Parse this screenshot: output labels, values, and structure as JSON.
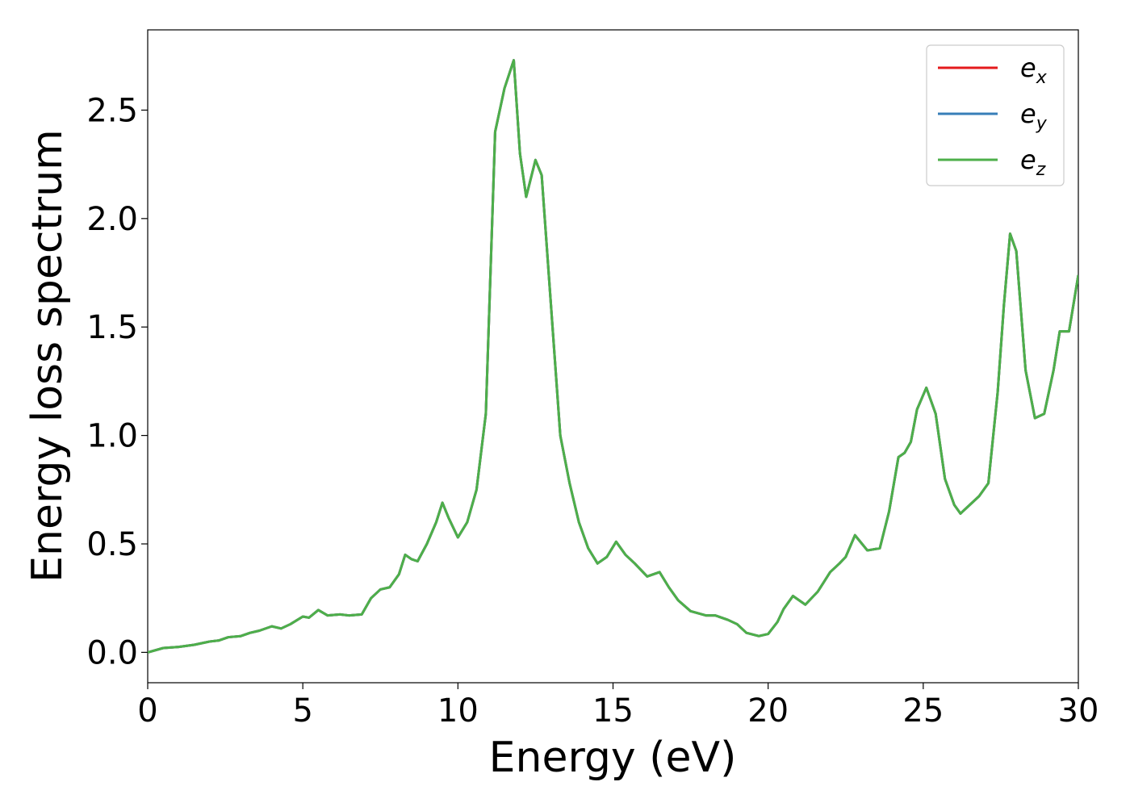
{
  "chart_data": {
    "type": "line",
    "xlabel": "Energy (eV)",
    "ylabel": "Energy loss spectrum",
    "xlim": [
      0,
      30
    ],
    "ylim": [
      -0.14,
      2.87
    ],
    "xticks": [
      0,
      5,
      10,
      15,
      20,
      25,
      30
    ],
    "xtick_labels": [
      "0",
      "5",
      "10",
      "15",
      "20",
      "25",
      "30"
    ],
    "yticks": [
      0.0,
      0.5,
      1.0,
      1.5,
      2.0,
      2.5
    ],
    "ytick_labels": [
      "0.0",
      "0.5",
      "1.0",
      "1.5",
      "2.0",
      "2.5"
    ],
    "grid": false,
    "legend_position": "top-right",
    "x": [
      0,
      0.5,
      1,
      1.5,
      2,
      2.3,
      2.6,
      3,
      3.3,
      3.6,
      4,
      4.3,
      4.6,
      5,
      5.2,
      5.5,
      5.8,
      6.2,
      6.5,
      6.9,
      7.2,
      7.5,
      7.8,
      8.1,
      8.3,
      8.5,
      8.7,
      9,
      9.3,
      9.5,
      9.7,
      10,
      10.3,
      10.6,
      10.9,
      11.2,
      11.5,
      11.8,
      12,
      12.2,
      12.5,
      12.7,
      13,
      13.3,
      13.6,
      13.9,
      14.2,
      14.5,
      14.8,
      15.1,
      15.4,
      15.7,
      16.1,
      16.5,
      16.8,
      17.1,
      17.5,
      18,
      18.3,
      18.7,
      19,
      19.3,
      19.7,
      20,
      20.3,
      20.5,
      20.8,
      21.2,
      21.6,
      22,
      22.3,
      22.5,
      22.8,
      23.2,
      23.6,
      23.9,
      24.2,
      24.4,
      24.6,
      24.8,
      25.1,
      25.4,
      25.7,
      26,
      26.2,
      26.5,
      26.8,
      27.1,
      27.4,
      27.6,
      27.8,
      28,
      28.3,
      28.6,
      28.9,
      29.2,
      29.4,
      29.7,
      30
    ],
    "series": [
      {
        "name": "e_x",
        "color": "#e41a1c",
        "values": [
          0,
          0.02,
          0.025,
          0.035,
          0.05,
          0.055,
          0.07,
          0.075,
          0.09,
          0.1,
          0.12,
          0.11,
          0.13,
          0.165,
          0.16,
          0.195,
          0.17,
          0.175,
          0.17,
          0.175,
          0.25,
          0.29,
          0.3,
          0.36,
          0.45,
          0.43,
          0.42,
          0.5,
          0.6,
          0.69,
          0.62,
          0.53,
          0.6,
          0.75,
          1.1,
          2.4,
          2.6,
          2.73,
          2.3,
          2.1,
          2.27,
          2.2,
          1.6,
          1.0,
          0.78,
          0.6,
          0.48,
          0.41,
          0.44,
          0.51,
          0.45,
          0.41,
          0.35,
          0.37,
          0.3,
          0.24,
          0.19,
          0.17,
          0.17,
          0.15,
          0.13,
          0.09,
          0.075,
          0.085,
          0.14,
          0.2,
          0.26,
          0.22,
          0.28,
          0.37,
          0.41,
          0.44,
          0.54,
          0.47,
          0.48,
          0.65,
          0.9,
          0.92,
          0.97,
          1.12,
          1.22,
          1.1,
          0.8,
          0.68,
          0.64,
          0.68,
          0.72,
          0.78,
          1.2,
          1.6,
          1.93,
          1.85,
          1.3,
          1.08,
          1.1,
          1.3,
          1.48,
          1.48,
          1.74
        ]
      },
      {
        "name": "e_y",
        "color": "#377eb8",
        "values": [
          0,
          0.02,
          0.025,
          0.035,
          0.05,
          0.055,
          0.07,
          0.075,
          0.09,
          0.1,
          0.12,
          0.11,
          0.13,
          0.165,
          0.16,
          0.195,
          0.17,
          0.175,
          0.17,
          0.175,
          0.25,
          0.29,
          0.3,
          0.36,
          0.45,
          0.43,
          0.42,
          0.5,
          0.6,
          0.69,
          0.62,
          0.53,
          0.6,
          0.75,
          1.1,
          2.4,
          2.6,
          2.73,
          2.3,
          2.1,
          2.27,
          2.2,
          1.6,
          1.0,
          0.78,
          0.6,
          0.48,
          0.41,
          0.44,
          0.51,
          0.45,
          0.41,
          0.35,
          0.37,
          0.3,
          0.24,
          0.19,
          0.17,
          0.17,
          0.15,
          0.13,
          0.09,
          0.075,
          0.085,
          0.14,
          0.2,
          0.26,
          0.22,
          0.28,
          0.37,
          0.41,
          0.44,
          0.54,
          0.47,
          0.48,
          0.65,
          0.9,
          0.92,
          0.97,
          1.12,
          1.22,
          1.1,
          0.8,
          0.68,
          0.64,
          0.68,
          0.72,
          0.78,
          1.2,
          1.6,
          1.93,
          1.85,
          1.3,
          1.08,
          1.1,
          1.3,
          1.48,
          1.48,
          1.74
        ]
      },
      {
        "name": "e_z",
        "color": "#4daf4a",
        "values": [
          0,
          0.02,
          0.025,
          0.035,
          0.05,
          0.055,
          0.07,
          0.075,
          0.09,
          0.1,
          0.12,
          0.11,
          0.13,
          0.165,
          0.16,
          0.195,
          0.17,
          0.175,
          0.17,
          0.175,
          0.25,
          0.29,
          0.3,
          0.36,
          0.45,
          0.43,
          0.42,
          0.5,
          0.6,
          0.69,
          0.62,
          0.53,
          0.6,
          0.75,
          1.1,
          2.4,
          2.6,
          2.73,
          2.3,
          2.1,
          2.27,
          2.2,
          1.6,
          1.0,
          0.78,
          0.6,
          0.48,
          0.41,
          0.44,
          0.51,
          0.45,
          0.41,
          0.35,
          0.37,
          0.3,
          0.24,
          0.19,
          0.17,
          0.17,
          0.15,
          0.13,
          0.09,
          0.075,
          0.085,
          0.14,
          0.2,
          0.26,
          0.22,
          0.28,
          0.37,
          0.41,
          0.44,
          0.54,
          0.47,
          0.48,
          0.65,
          0.9,
          0.92,
          0.97,
          1.12,
          1.22,
          1.1,
          0.8,
          0.68,
          0.64,
          0.68,
          0.72,
          0.78,
          1.2,
          1.6,
          1.93,
          1.85,
          1.3,
          1.08,
          1.1,
          1.3,
          1.48,
          1.48,
          1.74
        ]
      }
    ],
    "legend": [
      {
        "base": "e",
        "sub": "x"
      },
      {
        "base": "e",
        "sub": "y"
      },
      {
        "base": "e",
        "sub": "z"
      }
    ]
  }
}
